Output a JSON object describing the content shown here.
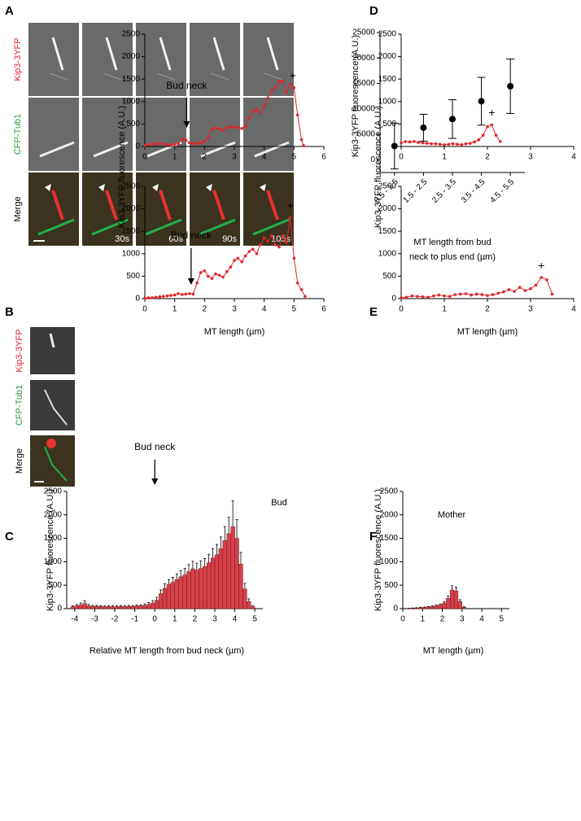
{
  "panel_labels": [
    "A",
    "B",
    "C",
    "D",
    "E",
    "F"
  ],
  "panel_a": {
    "row_labels": [
      "Kip3-3YFP",
      "CFP-Tub1",
      "Merge"
    ],
    "row_colors": [
      "#e0262b",
      "#2a9d3a",
      "#000000"
    ],
    "time_labels": [
      "30s",
      "60s",
      "90s",
      "105s"
    ]
  },
  "panel_b_images": {
    "row_labels": [
      "Kip3-3YFP",
      "CFP-Tub1",
      "Merge"
    ],
    "row_colors": [
      "#e0262b",
      "#2a9d3a",
      "#000000"
    ]
  },
  "chart_data": [
    {
      "type": "errorbar",
      "ylabel": "Kip3-3YFP fluorescence (A.U.)",
      "xlabel": [
        "MT length from bud",
        "neck to plus end (µm)"
      ],
      "categories": [
        "0.5 - 1.5",
        "1.5 - 2.5",
        "2.5 - 3.5",
        "3.5 - 4.5",
        "4.5 - 5.5"
      ],
      "values": [
        2700,
        6300,
        8000,
        11500,
        14450
      ],
      "errors": [
        4500,
        2650,
        3800,
        4700,
        5350
      ],
      "color": "#000000",
      "ylim": [
        -2500,
        25000
      ],
      "yticks": [
        0,
        5000,
        10000,
        15000,
        20000,
        25000
      ]
    },
    {
      "type": "line",
      "ylabel": "Kip3-3YFP fluorescence (A.U.)",
      "x": [
        0,
        0.12,
        0.25,
        0.37,
        0.5,
        0.62,
        0.75,
        0.87,
        1.0,
        1.12,
        1.25,
        1.37,
        1.5,
        1.62,
        1.75,
        1.87,
        2.0,
        2.12,
        2.25,
        2.37,
        2.5,
        2.62,
        2.75,
        2.87,
        3.0,
        3.12,
        3.25,
        3.37,
        3.5,
        3.62,
        3.75,
        3.87,
        4.0,
        4.12,
        4.25,
        4.37,
        4.5,
        4.62,
        4.75,
        4.87,
        5.0,
        5.12,
        5.25,
        5.32
      ],
      "values": [
        20,
        40,
        60,
        50,
        70,
        60,
        40,
        30,
        50,
        60,
        160,
        140,
        80,
        60,
        70,
        80,
        110,
        200,
        380,
        420,
        390,
        360,
        420,
        440,
        430,
        420,
        400,
        450,
        640,
        780,
        820,
        760,
        900,
        1080,
        1250,
        1320,
        1450,
        1460,
        1200,
        1380,
        1310,
        700,
        150,
        20
      ],
      "color": "#e0262b",
      "xlim": [
        0,
        6
      ],
      "ylim": [
        0,
        2500
      ],
      "xticks": [
        0,
        1,
        2,
        3,
        4,
        5,
        6
      ],
      "yticks": [
        0,
        500,
        1000,
        1500,
        2000,
        2500
      ],
      "annotations": [
        {
          "text": "Bud neck",
          "x": 1.4,
          "arrow": true
        },
        {
          "text": "+",
          "x": 4.96
        }
      ]
    },
    {
      "type": "line",
      "xlabel": "MT length (µm)",
      "x": [
        0,
        0.12,
        0.25,
        0.37,
        0.5,
        0.62,
        0.75,
        0.87,
        1.0,
        1.12,
        1.25,
        1.37,
        1.5,
        1.62,
        1.75,
        1.87,
        2.0,
        2.12,
        2.25,
        2.37,
        2.5,
        2.62,
        2.75,
        2.87,
        3.0,
        3.12,
        3.25,
        3.37,
        3.5,
        3.62,
        3.75,
        3.87,
        4.0,
        4.12,
        4.25,
        4.37,
        4.5,
        4.62,
        4.75,
        4.87,
        5.0,
        5.12,
        5.25,
        5.37
      ],
      "values": [
        10,
        20,
        20,
        30,
        40,
        50,
        60,
        70,
        80,
        110,
        90,
        100,
        110,
        100,
        350,
        580,
        620,
        500,
        450,
        550,
        520,
        480,
        600,
        700,
        850,
        900,
        820,
        950,
        1050,
        1100,
        1000,
        1200,
        1350,
        1280,
        1400,
        1200,
        1150,
        1400,
        1250,
        1800,
        900,
        350,
        200,
        50
      ],
      "color": "#e0262b",
      "xlim": [
        0,
        6
      ],
      "ylim": [
        0,
        2500
      ],
      "xticks": [
        0,
        1,
        2,
        3,
        4,
        5,
        6
      ],
      "yticks": [
        0,
        500,
        1000,
        1500,
        2000,
        2500
      ],
      "annotations": [
        {
          "text": "Bud neck",
          "x": 1.55,
          "arrow": true
        },
        {
          "text": "+",
          "x": 4.87
        }
      ]
    },
    {
      "type": "line",
      "ylabel": "Kip3-3YFP fluorescence (A.U.)",
      "x": [
        0,
        0.1,
        0.2,
        0.3,
        0.4,
        0.5,
        0.6,
        0.7,
        0.8,
        0.9,
        1.0,
        1.1,
        1.2,
        1.3,
        1.4,
        1.5,
        1.6,
        1.7,
        1.8,
        1.9,
        2.0,
        2.1,
        2.2,
        2.3
      ],
      "values": [
        80,
        110,
        100,
        110,
        90,
        80,
        70,
        60,
        60,
        50,
        40,
        50,
        60,
        50,
        40,
        60,
        70,
        100,
        150,
        250,
        440,
        480,
        250,
        110
      ],
      "color": "#e0262b",
      "xlim": [
        0,
        4
      ],
      "ylim": [
        0,
        2500
      ],
      "xticks": [
        0,
        1,
        2,
        3,
        4
      ],
      "yticks": [
        0,
        500,
        1000,
        1500,
        2000,
        2500
      ],
      "annotations": [
        {
          "text": "+",
          "x": 2.1
        }
      ]
    },
    {
      "type": "line",
      "xlabel": "MT length (µm)",
      "x": [
        0,
        0.125,
        0.25,
        0.375,
        0.5,
        0.625,
        0.75,
        0.875,
        1,
        1.125,
        1.25,
        1.375,
        1.5,
        1.625,
        1.75,
        1.875,
        2,
        2.125,
        2.25,
        2.375,
        2.5,
        2.625,
        2.75,
        2.875,
        3,
        3.125,
        3.25,
        3.375,
        3.5
      ],
      "values": [
        20,
        30,
        60,
        50,
        40,
        30,
        60,
        80,
        60,
        50,
        90,
        100,
        110,
        80,
        100,
        90,
        70,
        90,
        120,
        150,
        200,
        160,
        250,
        180,
        220,
        300,
        470,
        420,
        100
      ],
      "color": "#e0262b",
      "xlim": [
        0,
        4
      ],
      "ylim": [
        0,
        2500
      ],
      "xticks": [
        0,
        1,
        2,
        3,
        4
      ],
      "yticks": [
        0,
        500,
        1000,
        1500,
        2000,
        2500
      ],
      "annotations": [
        {
          "text": "+",
          "x": 3.25
        }
      ]
    },
    {
      "type": "histogram",
      "ylabel": "Kip3-3YFP fluorescence (A.U.)",
      "xlabel": "Relative MT length from bud neck (µm)",
      "bins": [
        -4.2,
        -4,
        -3.8,
        -3.6,
        -3.4,
        -3.2,
        -3,
        -2.8,
        -2.6,
        -2.4,
        -2.2,
        -2,
        -1.8,
        -1.6,
        -1.4,
        -1.2,
        -1,
        -0.8,
        -0.6,
        -0.4,
        -0.2,
        0,
        0.2,
        0.4,
        0.6,
        0.8,
        1,
        1.2,
        1.4,
        1.6,
        1.8,
        2,
        2.2,
        2.4,
        2.6,
        2.8,
        3,
        3.2,
        3.4,
        3.6,
        3.8,
        4,
        4.2,
        4.4,
        4.6,
        4.8,
        5
      ],
      "values": [
        40,
        60,
        80,
        110,
        60,
        50,
        50,
        45,
        40,
        45,
        40,
        40,
        45,
        40,
        50,
        45,
        55,
        60,
        70,
        90,
        120,
        180,
        320,
        430,
        520,
        560,
        620,
        680,
        720,
        790,
        850,
        820,
        860,
        900,
        980,
        1080,
        1150,
        1280,
        1450,
        1600,
        1750,
        1500,
        950,
        420,
        150,
        40
      ],
      "errors": [
        20,
        30,
        40,
        60,
        30,
        20,
        20,
        20,
        20,
        20,
        20,
        20,
        20,
        20,
        20,
        20,
        20,
        20,
        30,
        40,
        50,
        60,
        80,
        100,
        100,
        110,
        120,
        130,
        140,
        150,
        160,
        150,
        160,
        170,
        180,
        200,
        220,
        250,
        300,
        350,
        550,
        400,
        250,
        120,
        60,
        20
      ],
      "color": "#d6404a",
      "xlim": [
        -4.4,
        5.4
      ],
      "ylim": [
        0,
        2500
      ],
      "xticks": [
        -4,
        -3,
        -2,
        -1,
        0,
        1,
        2,
        3,
        4,
        5
      ],
      "yticks": [
        0,
        500,
        1000,
        1500,
        2000,
        2500
      ],
      "annotations": [
        {
          "text": "Bud neck",
          "x": 0,
          "arrow": true
        }
      ],
      "label": "Bud"
    },
    {
      "type": "histogram",
      "ylabel": "Kip3-3YFP fluorescence (A.U.)",
      "xlabel": "MT length (µm)",
      "bins": [
        0.2,
        0.4,
        0.6,
        0.8,
        1.0,
        1.2,
        1.4,
        1.6,
        1.8,
        2.0,
        2.2,
        2.4,
        2.6,
        2.8,
        3.0,
        3.2
      ],
      "values": [
        5,
        10,
        15,
        20,
        25,
        35,
        45,
        60,
        80,
        120,
        220,
        400,
        380,
        150,
        30
      ],
      "errors": [
        3,
        5,
        5,
        8,
        8,
        10,
        12,
        15,
        20,
        30,
        50,
        90,
        80,
        40,
        10
      ],
      "color": "#d6404a",
      "xlim": [
        0,
        5.4
      ],
      "ylim": [
        0,
        2500
      ],
      "xticks": [
        0,
        1,
        2,
        3,
        4,
        5
      ],
      "yticks": [
        0,
        500,
        1000,
        1500,
        2000,
        2500
      ],
      "label": "Mother"
    }
  ]
}
